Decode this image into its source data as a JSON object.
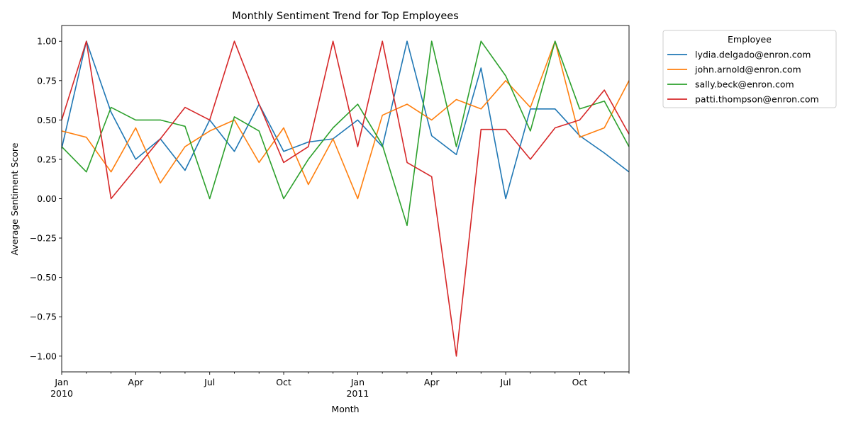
{
  "chart_data": {
    "type": "line",
    "title": "Monthly Sentiment Trend for Top Employees",
    "xlabel": "Month",
    "ylabel": "Average Sentiment Score",
    "x": [
      "2010-01",
      "2010-02",
      "2010-03",
      "2010-04",
      "2010-05",
      "2010-06",
      "2010-07",
      "2010-08",
      "2010-09",
      "2010-10",
      "2010-11",
      "2010-12",
      "2011-01",
      "2011-02",
      "2011-03",
      "2011-04",
      "2011-05",
      "2011-06",
      "2011-07",
      "2011-08",
      "2011-09",
      "2011-10",
      "2011-11",
      "2011-12"
    ],
    "x_tick_labels": [
      {
        "month": "2010-01",
        "label": "Jan",
        "year": "2010"
      },
      {
        "month": "2010-04",
        "label": "Apr",
        "year": ""
      },
      {
        "month": "2010-07",
        "label": "Jul",
        "year": ""
      },
      {
        "month": "2010-10",
        "label": "Oct",
        "year": ""
      },
      {
        "month": "2011-01",
        "label": "Jan",
        "year": "2011"
      },
      {
        "month": "2011-04",
        "label": "Apr",
        "year": ""
      },
      {
        "month": "2011-07",
        "label": "Jul",
        "year": ""
      },
      {
        "month": "2011-10",
        "label": "Oct",
        "year": ""
      }
    ],
    "y_ticks": [
      -1.0,
      -0.75,
      -0.5,
      -0.25,
      0.0,
      0.25,
      0.5,
      0.75,
      1.0
    ],
    "y_tick_labels": [
      "−1.00",
      "−0.75",
      "−0.50",
      "−0.25",
      "0.00",
      "0.25",
      "0.50",
      "0.75",
      "1.00"
    ],
    "ylim": [
      -1.1,
      1.1
    ],
    "grid": false,
    "legend": {
      "title": "Employee",
      "placement": "outside-right"
    },
    "series": [
      {
        "name": "lydia.delgado@enron.com",
        "color": "#1f77b4",
        "values": [
          0.32,
          1.0,
          0.55,
          0.25,
          0.38,
          0.18,
          0.5,
          0.3,
          0.6,
          0.3,
          0.36,
          0.38,
          0.5,
          0.33,
          1.0,
          0.4,
          0.28,
          0.83,
          0.0,
          0.57,
          0.57,
          0.4,
          0.29,
          0.17
        ]
      },
      {
        "name": "john.arnold@enron.com",
        "color": "#ff7f0e",
        "values": [
          0.43,
          0.39,
          0.17,
          0.45,
          0.1,
          0.33,
          0.43,
          0.5,
          0.23,
          0.45,
          0.09,
          0.38,
          0.0,
          0.53,
          0.6,
          0.5,
          0.63,
          0.57,
          0.75,
          0.58,
          1.0,
          0.39,
          0.45,
          0.75
        ]
      },
      {
        "name": "sally.beck@enron.com",
        "color": "#2ca02c",
        "values": [
          0.33,
          0.17,
          0.58,
          0.5,
          0.5,
          0.46,
          0.0,
          0.52,
          0.43,
          0.0,
          0.25,
          0.45,
          0.6,
          0.34,
          -0.17,
          1.0,
          0.33,
          1.0,
          0.78,
          0.43,
          1.0,
          0.57,
          0.62,
          0.33
        ]
      },
      {
        "name": "patti.thompson@enron.com",
        "color": "#d62728",
        "values": [
          0.5,
          1.0,
          0.0,
          0.19,
          0.38,
          0.58,
          0.5,
          1.0,
          0.6,
          0.23,
          0.33,
          1.0,
          0.33,
          1.0,
          0.23,
          0.14,
          -1.0,
          0.44,
          0.44,
          0.25,
          0.45,
          0.5,
          0.69,
          0.41
        ]
      }
    ]
  }
}
